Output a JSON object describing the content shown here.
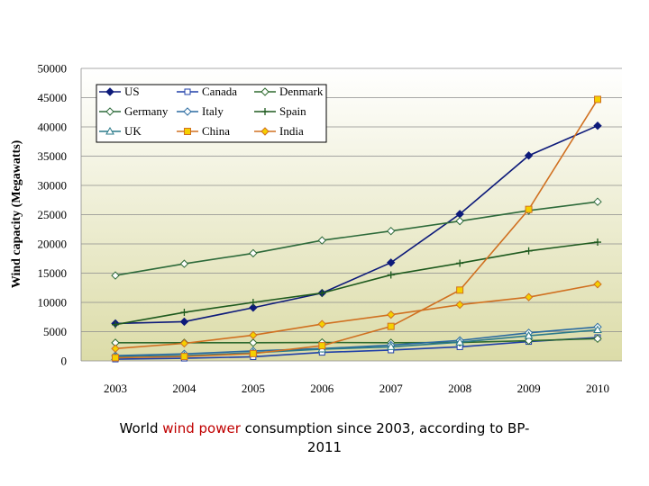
{
  "caption": {
    "prefix": "World ",
    "highlight": "wind power",
    "suffix": " consumption since 2003, according to BP-",
    "line2": "2011"
  },
  "chart_data": {
    "type": "line",
    "title": "",
    "xlabel": "",
    "ylabel": "Wind capacity (Megawatts)",
    "ylim": [
      0,
      50000
    ],
    "yticks": [
      0,
      5000,
      10000,
      15000,
      20000,
      25000,
      30000,
      35000,
      40000,
      45000,
      50000
    ],
    "x": [
      "2003",
      "2004",
      "2005",
      "2006",
      "2007",
      "2008",
      "2009",
      "2010"
    ],
    "grid": true,
    "legend_position": "top-left",
    "series": [
      {
        "name": "US",
        "color": "#0d1a7a",
        "marker": "diamond",
        "values": [
          6400,
          6700,
          9100,
          11600,
          16800,
          25100,
          35100,
          40200
        ]
      },
      {
        "name": "Canada",
        "color": "#1f3fa8",
        "marker": "square-open",
        "values": [
          300,
          450,
          700,
          1450,
          1850,
          2400,
          3300,
          4000
        ]
      },
      {
        "name": "Denmark",
        "color": "#2e6a2e",
        "marker": "diamond-open",
        "values": [
          3100,
          3100,
          3100,
          3150,
          3100,
          3150,
          3450,
          3800
        ]
      },
      {
        "name": "Germany",
        "color": "#2d6a3a",
        "marker": "diamond-open",
        "values": [
          14600,
          16600,
          18400,
          20600,
          22200,
          23900,
          25700,
          27200
        ]
      },
      {
        "name": "Italy",
        "color": "#2a6aa0",
        "marker": "diamond-open",
        "values": [
          900,
          1200,
          1700,
          2100,
          2700,
          3500,
          4800,
          5800
        ]
      },
      {
        "name": "Spain",
        "color": "#1e5a1e",
        "marker": "plus",
        "values": [
          6200,
          8300,
          10000,
          11600,
          14700,
          16700,
          18800,
          20300
        ]
      },
      {
        "name": "UK",
        "color": "#2a7a8a",
        "marker": "triangle-open",
        "values": [
          700,
          900,
          1400,
          2000,
          2400,
          3200,
          4300,
          5300
        ]
      },
      {
        "name": "China",
        "color": "#d07020",
        "marker": "square-yellow",
        "values": [
          550,
          750,
          1250,
          2600,
          5900,
          12100,
          25900,
          44700
        ]
      },
      {
        "name": "India",
        "color": "#d07020",
        "marker": "diamond-yellow",
        "values": [
          2100,
          3000,
          4400,
          6300,
          7900,
          9600,
          10900,
          13100
        ]
      }
    ]
  }
}
